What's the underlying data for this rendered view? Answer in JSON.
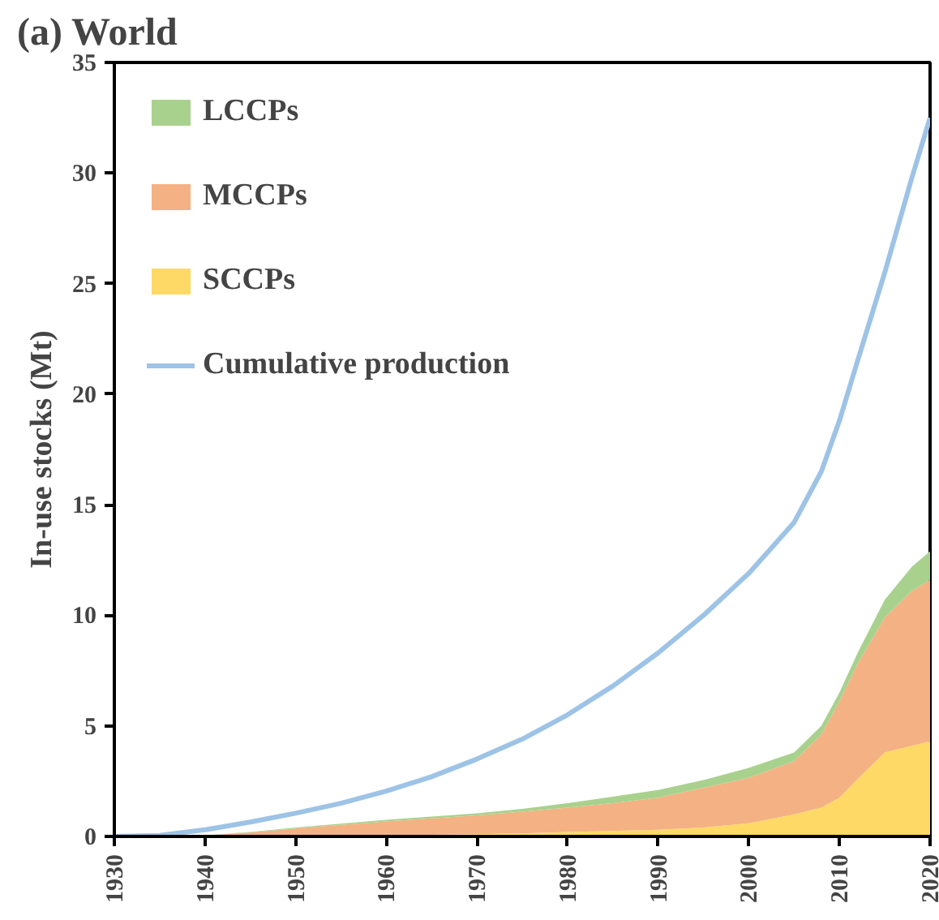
{
  "chart_data": {
    "type": "area",
    "title": "(a) World",
    "ylabel": "In-use stocks (Mt)",
    "stacked": true,
    "x": [
      1930,
      1935,
      1940,
      1945,
      1950,
      1955,
      1960,
      1965,
      1970,
      1975,
      1980,
      1985,
      1990,
      1995,
      2000,
      2005,
      2008,
      2010,
      2012,
      2015,
      2018,
      2020
    ],
    "series": [
      {
        "name": "SCCPs",
        "color": "#ffd966",
        "values": [
          0,
          0,
          0.01,
          0.02,
          0.03,
          0.04,
          0.05,
          0.07,
          0.1,
          0.14,
          0.2,
          0.25,
          0.3,
          0.4,
          0.6,
          1.0,
          1.3,
          1.75,
          2.6,
          3.8,
          4.1,
          4.3
        ]
      },
      {
        "name": "MCCPs",
        "color": "#f4b183",
        "values": [
          0,
          0,
          0.03,
          0.16,
          0.33,
          0.48,
          0.63,
          0.75,
          0.85,
          0.98,
          1.1,
          1.25,
          1.45,
          1.8,
          2.05,
          2.4,
          3.3,
          4.35,
          5.2,
          6.1,
          7.0,
          7.3
        ]
      },
      {
        "name": "LCCPs",
        "color": "#a9d18e",
        "values": [
          0,
          0,
          0.01,
          0.02,
          0.04,
          0.06,
          0.07,
          0.08,
          0.1,
          0.13,
          0.2,
          0.3,
          0.35,
          0.35,
          0.45,
          0.4,
          0.4,
          0.4,
          0.5,
          0.8,
          1.1,
          1.3
        ]
      },
      {
        "name": "Cumulative production",
        "type": "line",
        "color": "#9dc3e6",
        "values": [
          0,
          0.05,
          0.3,
          0.65,
          1.05,
          1.5,
          2.05,
          2.7,
          3.5,
          4.4,
          5.5,
          6.8,
          8.3,
          10.0,
          11.9,
          14.2,
          16.5,
          18.8,
          21.5,
          25.5,
          29.8,
          32.5
        ]
      }
    ],
    "xlim": [
      1930,
      2020
    ],
    "xticks": [
      1930,
      1940,
      1950,
      1960,
      1970,
      1980,
      1990,
      2000,
      2010,
      2020
    ],
    "ylim": [
      0,
      35
    ],
    "yticks": [
      0,
      5,
      10,
      15,
      20,
      25,
      30,
      35
    ],
    "grid": false,
    "legend": "top left",
    "line_style": "solid"
  }
}
